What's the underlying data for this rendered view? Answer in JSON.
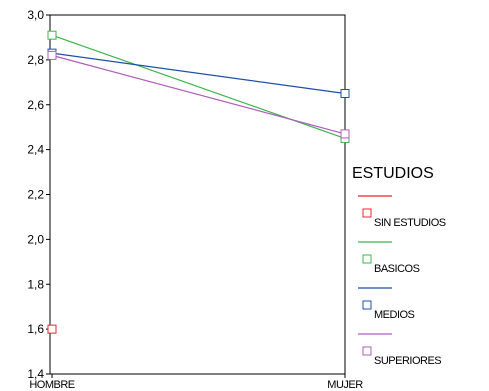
{
  "chart_data": {
    "type": "line",
    "categories": [
      "HOMBRE",
      "MUJER"
    ],
    "ylim": [
      1.4,
      3.0
    ],
    "yticks": [
      "1,4",
      "1,6",
      "1,8",
      "2,0",
      "2,2",
      "2,4",
      "2,6",
      "2,8",
      "3,0"
    ],
    "ytick_values": [
      1.4,
      1.6,
      1.8,
      2.0,
      2.2,
      2.4,
      2.6,
      2.8,
      3.0
    ],
    "legend": {
      "title": "ESTUDIOS",
      "placement": "right"
    },
    "series": [
      {
        "name": "SIN ESTUDIOS",
        "color": "#e8242c",
        "values": [
          1.6,
          null
        ]
      },
      {
        "name": "BASICOS",
        "color": "#3cb44b",
        "values": [
          2.91,
          2.45
        ]
      },
      {
        "name": "MEDIOS",
        "color": "#1f4fa8",
        "values": [
          2.83,
          2.65
        ]
      },
      {
        "name": "SUPERIORES",
        "color": "#b05cc0",
        "values": [
          2.82,
          2.47
        ]
      }
    ]
  }
}
